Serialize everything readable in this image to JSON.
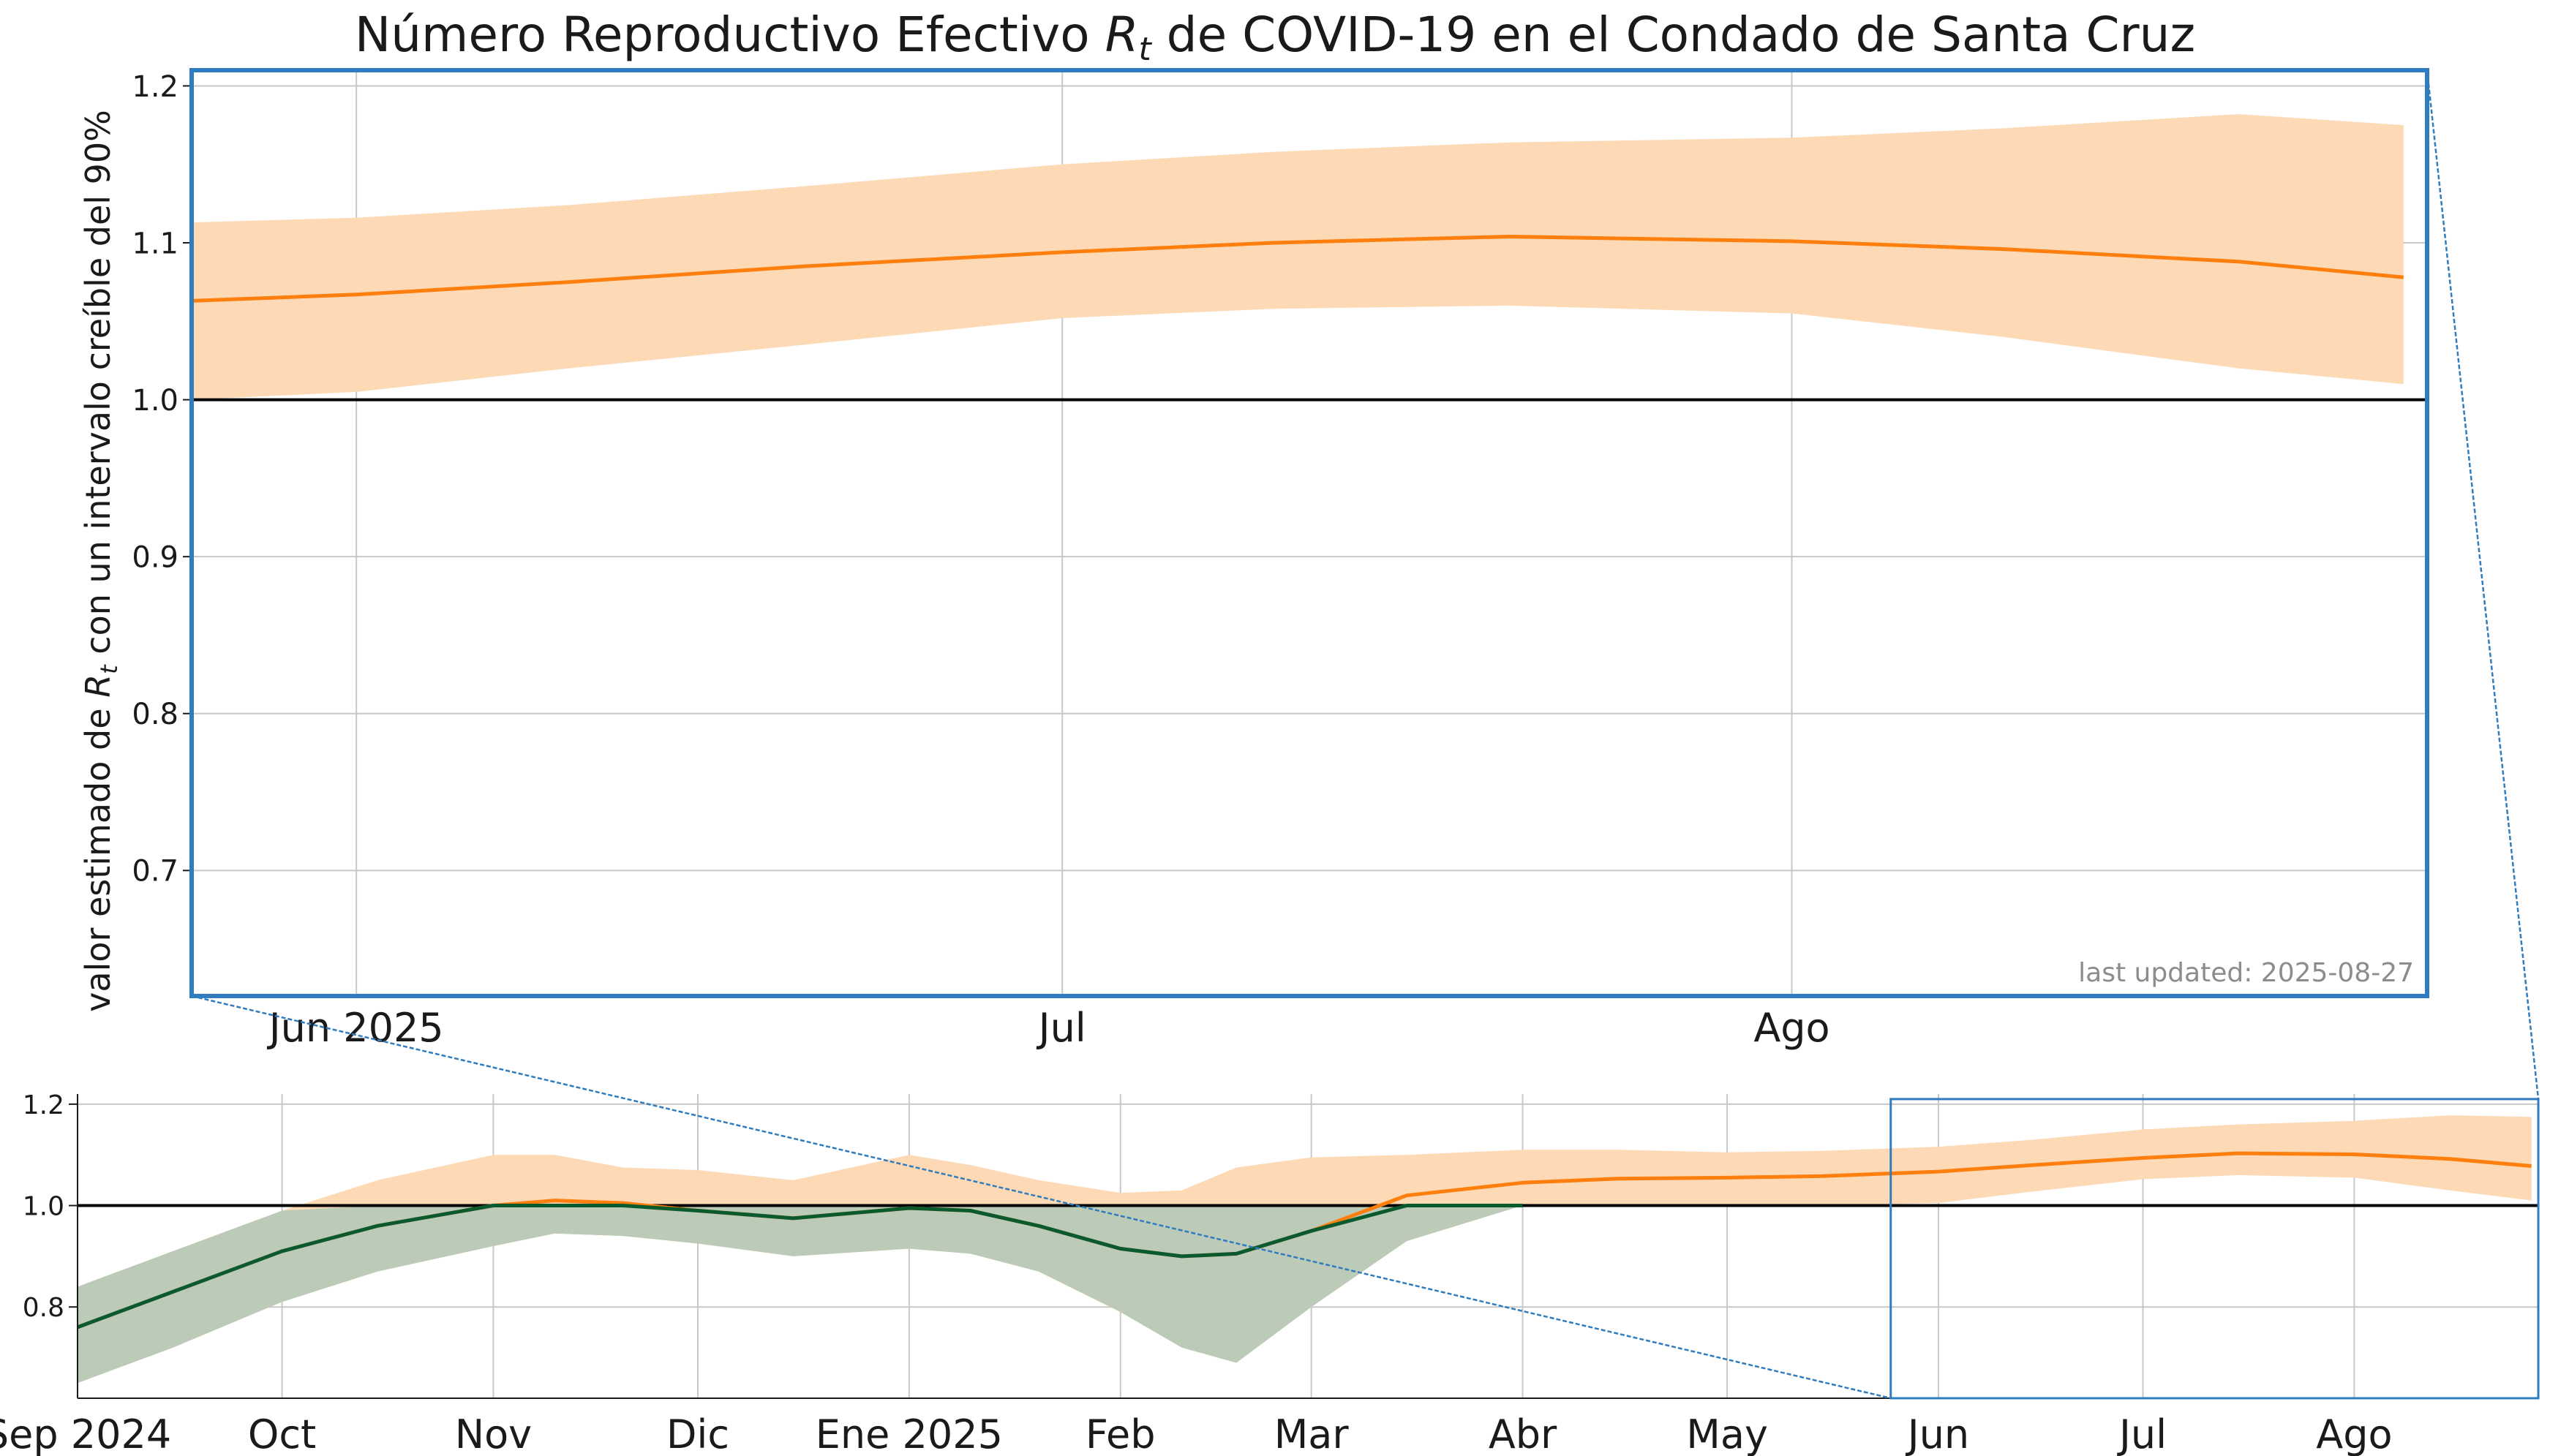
{
  "chart_data": [
    {
      "type": "line",
      "panel": "zoomed",
      "title": "Número Reproductivo Efectivo Rt de COVID-19 en el Condado de Santa Cruz",
      "title_parts": {
        "pre": "Número Reproductivo Efectivo ",
        "sym": "R",
        "sub": "t",
        "post": " de COVID-19 en el Condado de Santa Cruz"
      },
      "ylabel": "valor estimado de Rt con un intervalo creíble del 90%",
      "ylabel_parts": {
        "pre": "valor estimado de ",
        "sym": "R",
        "sub": "t",
        "post": " con un intervalo creíble del 90%"
      },
      "annotation": "last updated: 2025-08-27",
      "xlim": [
        "2025-05-25",
        "2025-08-27"
      ],
      "ylim": [
        0.62,
        1.21
      ],
      "y_ticks": [
        0.7,
        0.8,
        0.9,
        1.0,
        1.1,
        1.2
      ],
      "y_tick_labels": [
        "0.7",
        "0.8",
        "0.9",
        "1.0",
        "1.1",
        "1.2"
      ],
      "x_ticks": [
        {
          "date": "2025-06-01",
          "label": "Jun 2025"
        },
        {
          "date": "2025-07-01",
          "label": "Jul"
        },
        {
          "date": "2025-08-01",
          "label": "Ago"
        }
      ],
      "reference_line": 1.0,
      "grid": true,
      "series": [
        {
          "color": "#ff7f0e",
          "band_color": "#fdd9b5",
          "x": [
            "2025-05-25",
            "2025-06-01",
            "2025-06-10",
            "2025-06-20",
            "2025-07-01",
            "2025-07-10",
            "2025-07-20",
            "2025-08-01",
            "2025-08-10",
            "2025-08-20",
            "2025-08-27"
          ],
          "values": [
            1.063,
            1.067,
            1.075,
            1.085,
            1.094,
            1.1,
            1.104,
            1.101,
            1.096,
            1.088,
            1.078
          ],
          "lower": [
            1.0,
            1.005,
            1.02,
            1.035,
            1.052,
            1.058,
            1.06,
            1.055,
            1.04,
            1.02,
            1.01
          ],
          "upper": [
            1.113,
            1.116,
            1.124,
            1.136,
            1.15,
            1.158,
            1.164,
            1.167,
            1.173,
            1.182,
            1.175
          ]
        }
      ]
    },
    {
      "type": "line",
      "panel": "overview",
      "xlim": [
        "2024-09-01",
        "2025-08-27"
      ],
      "ylim": [
        0.62,
        1.22
      ],
      "y_ticks": [
        0.8,
        1.0,
        1.2
      ],
      "y_tick_labels": [
        "0.8",
        "1.0",
        "1.2"
      ],
      "x_ticks": [
        {
          "date": "2024-09-01",
          "label": "Sep 2024"
        },
        {
          "date": "2024-10-01",
          "label": "Oct"
        },
        {
          "date": "2024-11-01",
          "label": "Nov"
        },
        {
          "date": "2024-12-01",
          "label": "Dic"
        },
        {
          "date": "2025-01-01",
          "label": "Ene 2025"
        },
        {
          "date": "2025-02-01",
          "label": "Feb"
        },
        {
          "date": "2025-03-01",
          "label": "Mar"
        },
        {
          "date": "2025-04-01",
          "label": "Abr"
        },
        {
          "date": "2025-05-01",
          "label": "May"
        },
        {
          "date": "2025-06-01",
          "label": "Jun"
        },
        {
          "date": "2025-07-01",
          "label": "Jul"
        },
        {
          "date": "2025-08-01",
          "label": "Ago"
        }
      ],
      "reference_line": 1.0,
      "grid": true,
      "zoom_region": [
        "2025-05-25",
        "2025-08-27"
      ],
      "series": [
        {
          "color": "#ff7f0e",
          "band_color": "#fdd9b5",
          "x": [
            "2024-09-01",
            "2024-09-15",
            "2024-10-01",
            "2024-10-15",
            "2024-11-01",
            "2024-11-10",
            "2024-11-20",
            "2024-12-01",
            "2024-12-15",
            "2025-01-01",
            "2025-01-10",
            "2025-01-20",
            "2025-02-01",
            "2025-02-10",
            "2025-02-18",
            "2025-03-01",
            "2025-03-15",
            "2025-04-01",
            "2025-04-15",
            "2025-05-01",
            "2025-05-15",
            "2025-06-01",
            "2025-06-15",
            "2025-07-01",
            "2025-07-15",
            "2025-08-01",
            "2025-08-15",
            "2025-08-27"
          ],
          "values": [
            0.76,
            0.83,
            0.91,
            0.96,
            1.0,
            1.01,
            1.005,
            0.99,
            0.975,
            0.995,
            0.99,
            0.96,
            0.915,
            0.9,
            0.905,
            0.95,
            1.02,
            1.045,
            1.053,
            1.055,
            1.058,
            1.067,
            1.08,
            1.094,
            1.103,
            1.101,
            1.092,
            1.078
          ],
          "lower": [
            0.65,
            0.72,
            0.81,
            0.87,
            0.92,
            0.945,
            0.94,
            0.925,
            0.9,
            0.915,
            0.905,
            0.87,
            0.79,
            0.72,
            0.69,
            0.8,
            0.93,
            1.0,
            1.0,
            1.0,
            1.0,
            1.005,
            1.028,
            1.052,
            1.06,
            1.055,
            1.03,
            1.01
          ],
          "upper": [
            0.84,
            0.91,
            0.99,
            1.05,
            1.1,
            1.1,
            1.075,
            1.07,
            1.05,
            1.1,
            1.08,
            1.05,
            1.025,
            1.03,
            1.075,
            1.095,
            1.1,
            1.11,
            1.11,
            1.105,
            1.108,
            1.116,
            1.13,
            1.15,
            1.16,
            1.167,
            1.178,
            1.175
          ]
        },
        {
          "color": "#0b5a2e",
          "band_color": "#bccbb8",
          "note": "portion of the estimate below 1.0",
          "x": [
            "2024-09-01",
            "2024-09-15",
            "2024-10-01",
            "2024-10-15",
            "2024-11-01",
            "2024-11-10",
            "2024-11-20",
            "2024-12-01",
            "2024-12-15",
            "2025-01-01",
            "2025-01-10",
            "2025-01-20",
            "2025-02-01",
            "2025-02-10",
            "2025-02-18",
            "2025-03-01",
            "2025-03-15",
            "2025-04-01"
          ],
          "values": [
            0.76,
            0.83,
            0.91,
            0.96,
            1.0,
            1.0,
            1.0,
            0.99,
            0.975,
            0.995,
            0.99,
            0.96,
            0.915,
            0.9,
            0.905,
            0.95,
            1.0,
            1.0
          ],
          "lower": [
            0.65,
            0.72,
            0.81,
            0.87,
            0.92,
            0.945,
            0.94,
            0.925,
            0.9,
            0.915,
            0.905,
            0.87,
            0.79,
            0.72,
            0.69,
            0.8,
            0.93,
            1.0
          ],
          "upper": [
            0.84,
            0.91,
            0.99,
            1.0,
            1.0,
            1.0,
            1.0,
            1.0,
            1.0,
            1.0,
            1.0,
            1.0,
            1.0,
            1.0,
            1.0,
            1.0,
            1.0,
            1.0
          ]
        }
      ]
    }
  ]
}
